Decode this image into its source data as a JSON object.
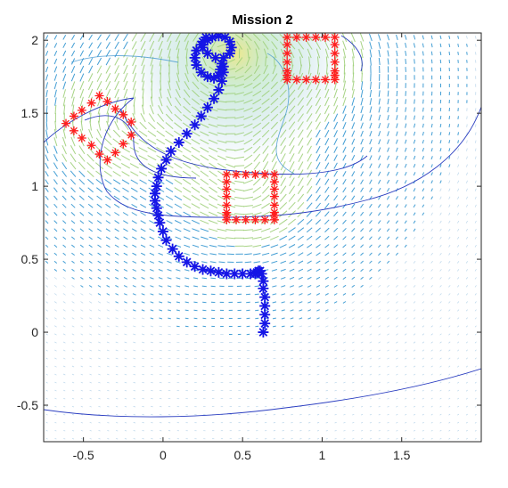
{
  "chart_data": {
    "type": "scatter",
    "title": "Mission 2",
    "xlabel": "",
    "ylabel": "",
    "xlim": [
      -0.75,
      2.0
    ],
    "ylim": [
      -0.75,
      2.05
    ],
    "xticks": [
      -0.5,
      0,
      0.5,
      1,
      1.5
    ],
    "xtick_labels": [
      "-0.5",
      "0",
      "0.5",
      "1",
      "1.5"
    ],
    "yticks": [
      -0.5,
      0,
      0.5,
      1,
      1.5,
      2
    ],
    "ytick_labels": [
      "-0.5",
      "0",
      "0.5",
      "1",
      "1.5",
      "2"
    ],
    "grid": false,
    "legend": "none",
    "colors": {
      "path": "#1515e6",
      "obstacle": "#ff1e1e",
      "field_low": "#3b8fd0",
      "field_high": "#e8e26a",
      "contour": "#2233b8",
      "axes": "#262626"
    },
    "series": [
      {
        "type": "scatter",
        "marker": "*",
        "color": "#1515e6",
        "x": [
          0.63,
          0.64,
          0.64,
          0.64,
          0.64,
          0.63,
          0.63,
          0.62,
          0.61,
          0.6,
          0.59,
          0.58,
          0.55,
          0.5,
          0.45,
          0.4,
          0.35,
          0.3,
          0.25,
          0.2,
          0.15,
          0.1,
          0.06,
          0.02,
          0.0,
          -0.02,
          -0.03,
          -0.04,
          -0.05,
          -0.05,
          -0.04,
          -0.03,
          -0.01,
          0.02,
          0.05,
          0.1,
          0.15,
          0.2,
          0.24,
          0.28,
          0.32,
          0.35,
          0.37,
          0.38,
          0.38,
          0.37,
          0.36,
          0.35,
          0.32,
          0.28,
          0.24,
          0.21,
          0.2,
          0.21,
          0.24,
          0.28,
          0.31,
          0.35,
          0.39,
          0.42,
          0.43,
          0.42,
          0.38,
          0.33,
          0.28,
          0.25,
          0.25,
          0.27
        ],
        "y": [
          0.0,
          0.06,
          0.12,
          0.18,
          0.24,
          0.3,
          0.35,
          0.4,
          0.42,
          0.42,
          0.41,
          0.4,
          0.4,
          0.4,
          0.4,
          0.4,
          0.41,
          0.42,
          0.43,
          0.45,
          0.48,
          0.52,
          0.57,
          0.63,
          0.69,
          0.75,
          0.8,
          0.85,
          0.9,
          0.95,
          1.0,
          1.06,
          1.12,
          1.18,
          1.24,
          1.3,
          1.36,
          1.42,
          1.48,
          1.54,
          1.6,
          1.66,
          1.72,
          1.78,
          1.82,
          1.84,
          1.8,
          1.76,
          1.74,
          1.75,
          1.78,
          1.83,
          1.88,
          1.93,
          1.97,
          2.0,
          2.02,
          2.03,
          2.02,
          1.99,
          1.95,
          1.91,
          1.88,
          1.88,
          1.91,
          1.95,
          1.99,
          2.02
        ]
      },
      {
        "type": "scatter",
        "marker": "*",
        "color": "#ff1e1e",
        "x": [
          0.4,
          0.46,
          0.52,
          0.58,
          0.64,
          0.7,
          0.4,
          0.46,
          0.52,
          0.58,
          0.64,
          0.7,
          0.4,
          0.4,
          0.4,
          0.4,
          0.4,
          0.4,
          0.7,
          0.7,
          0.7,
          0.7,
          0.7,
          0.7
        ],
        "y": [
          1.08,
          1.08,
          1.08,
          1.08,
          1.08,
          1.08,
          0.77,
          0.77,
          0.77,
          0.77,
          0.77,
          0.77,
          1.03,
          0.98,
          0.93,
          0.87,
          0.82,
          0.8,
          1.03,
          0.98,
          0.93,
          0.87,
          0.82,
          0.8
        ]
      },
      {
        "type": "scatter",
        "marker": "*",
        "color": "#ff1e1e",
        "x": [
          0.78,
          0.84,
          0.9,
          0.96,
          1.02,
          1.08,
          0.78,
          0.84,
          0.9,
          0.96,
          1.02,
          1.08,
          0.78,
          0.78,
          0.78,
          0.78,
          0.78,
          1.08,
          1.08,
          1.08,
          1.08,
          1.08
        ],
        "y": [
          2.02,
          2.02,
          2.02,
          2.02,
          2.02,
          2.02,
          1.73,
          1.73,
          1.73,
          1.73,
          1.73,
          1.73,
          1.97,
          1.91,
          1.85,
          1.79,
          1.76,
          1.97,
          1.91,
          1.85,
          1.79,
          1.76
        ]
      },
      {
        "type": "scatter",
        "marker": "*",
        "color": "#ff1e1e",
        "x": [
          -0.61,
          -0.56,
          -0.51,
          -0.45,
          -0.4,
          -0.56,
          -0.51,
          -0.45,
          -0.4,
          -0.35,
          -0.3,
          -0.25,
          -0.2,
          -0.35,
          -0.3,
          -0.25,
          -0.2
        ],
        "y": [
          1.43,
          1.48,
          1.52,
          1.57,
          1.62,
          1.38,
          1.33,
          1.28,
          1.22,
          1.58,
          1.53,
          1.49,
          1.44,
          1.18,
          1.23,
          1.29,
          1.35
        ]
      }
    ]
  }
}
